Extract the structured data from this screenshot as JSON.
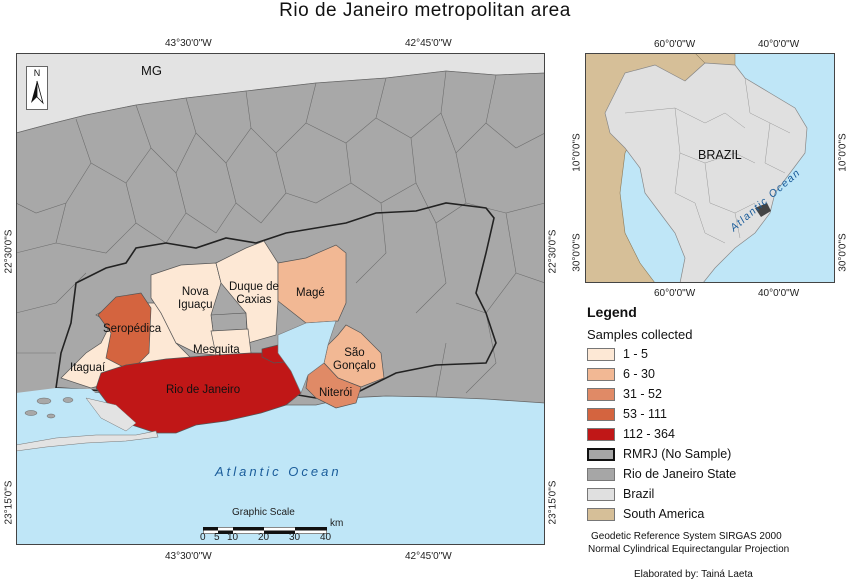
{
  "title": "Rio de Janeiro metropolitan area",
  "main_map": {
    "top_coords": [
      "43°30'0\"W",
      "42°45'0\"W"
    ],
    "bottom_coords": [
      "43°30'0\"W",
      "42°45'0\"W"
    ],
    "left_coords": [
      "22°30'0\"S",
      "23°15'0\"S"
    ],
    "right_coords": [
      "22°30'0\"S",
      "23°15'0\"S"
    ],
    "north_label": "N",
    "state_label": "MG",
    "ocean_label": "Atlantic Ocean",
    "municipalities": [
      {
        "name": "Seropédica",
        "color": "#d4643f"
      },
      {
        "name": "Itaguaí",
        "color": "#fde8d5"
      },
      {
        "name": "Nova\nIguaçu",
        "color": "#fde8d5"
      },
      {
        "name": "Duque de\nCaxias",
        "color": "#fde8d5"
      },
      {
        "name": "Magé",
        "color": "#f2b894"
      },
      {
        "name": "Mesquita",
        "color": "#fde8d5"
      },
      {
        "name": "Rio de Janeiro",
        "color": "#c01717"
      },
      {
        "name": "São\nGonçalo",
        "color": "#f2b894"
      },
      {
        "name": "Niterói",
        "color": "#e08a66"
      }
    ],
    "scale": {
      "title": "Graphic Scale",
      "unit": "km",
      "ticks": [
        "0",
        "5",
        "10",
        "20",
        "30",
        "40"
      ]
    }
  },
  "inset_map": {
    "top_coords": [
      "60°0'0\"W",
      "40°0'0\"W"
    ],
    "bottom_coords": [
      "60°0'0\"W",
      "40°0'0\"W"
    ],
    "left_coords": [
      "10°0'0\"S",
      "30°0'0\"S"
    ],
    "right_coords": [
      "10°0'0\"S",
      "30°0'0\"S"
    ],
    "country_label": "BRAZIL",
    "ocean_label": "Atlantic Ocean"
  },
  "legend": {
    "title": "Legend",
    "subtitle": "Samples collected",
    "items": [
      {
        "label": "1 - 5",
        "color": "#fde8d5"
      },
      {
        "label": "6 - 30",
        "color": "#f2b894"
      },
      {
        "label": "31 - 52",
        "color": "#e08a66"
      },
      {
        "label": "53 - 111",
        "color": "#d4643f"
      },
      {
        "label": "112 - 364",
        "color": "#c01717"
      },
      {
        "label": "RMRJ (No Sample)",
        "color": "#a6a6a6"
      },
      {
        "label": "Rio de Janeiro State",
        "color": "#a6a6a6"
      },
      {
        "label": "Brazil",
        "color": "#e0e0e0"
      },
      {
        "label": "South America",
        "color": "#d6bf98"
      }
    ]
  },
  "footer": {
    "datum": "Geodetic Reference System SIRGAS 2000",
    "projection": "Normal Cylindrical Equirectangular Projection",
    "author": "Elaborated by: Tainá Laeta"
  }
}
